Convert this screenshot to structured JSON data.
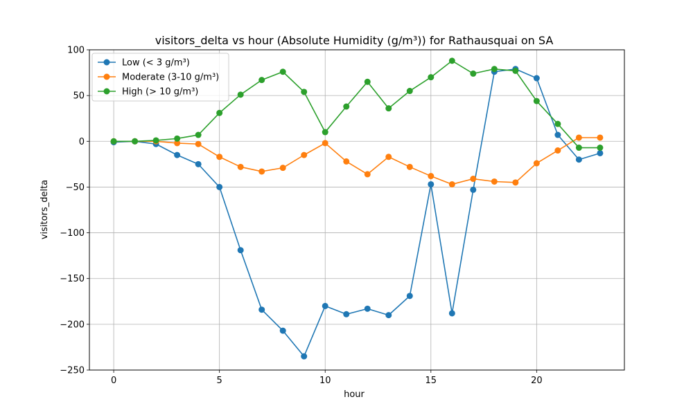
{
  "chart_data": {
    "type": "line",
    "title": "visitors_delta vs hour (Absolute Humidity (g/m³)) for Rathausquai on SA",
    "xlabel": "hour",
    "ylabel": "visitors_delta",
    "xlim": [
      -1.15,
      24.15
    ],
    "ylim": [
      -250,
      100
    ],
    "xticks": [
      0,
      5,
      10,
      15,
      20
    ],
    "yticks": [
      -250,
      -200,
      -150,
      -100,
      -50,
      0,
      50,
      100
    ],
    "ytick_labels": [
      "−250",
      "−200",
      "−150",
      "−100",
      "−50",
      "0",
      "50",
      "100"
    ],
    "grid": true,
    "legend_position": "top-left",
    "x": [
      0,
      1,
      2,
      3,
      4,
      5,
      6,
      7,
      8,
      9,
      10,
      11,
      12,
      13,
      14,
      15,
      16,
      17,
      18,
      19,
      20,
      21,
      22,
      23
    ],
    "series": [
      {
        "name": "Low (< 3 g/m³)",
        "color": "#1f77b4",
        "values": [
          -1,
          0,
          -3,
          -15,
          -25,
          -50,
          -119,
          -184,
          -207,
          -235,
          -180,
          -189,
          -183,
          -190,
          -169,
          -47,
          -188,
          -53,
          76,
          79,
          69,
          7,
          -20,
          -13
        ]
      },
      {
        "name": "Moderate (3-10 g/m³)",
        "color": "#ff7f0e",
        "values": [
          0,
          0,
          0,
          -2,
          -3,
          -17,
          -28,
          -33,
          -29,
          -15,
          -2,
          -22,
          -36,
          -17,
          -28,
          -38,
          -47,
          -41,
          -44,
          -45,
          -24,
          -10,
          4,
          4
        ]
      },
      {
        "name": "High (> 10 g/m³)",
        "color": "#2ca02c",
        "values": [
          0,
          0,
          1,
          3,
          7,
          31,
          51,
          67,
          76,
          54,
          10,
          38,
          65,
          36,
          55,
          70,
          88,
          74,
          79,
          77,
          44,
          19,
          -7,
          -7
        ]
      }
    ]
  }
}
